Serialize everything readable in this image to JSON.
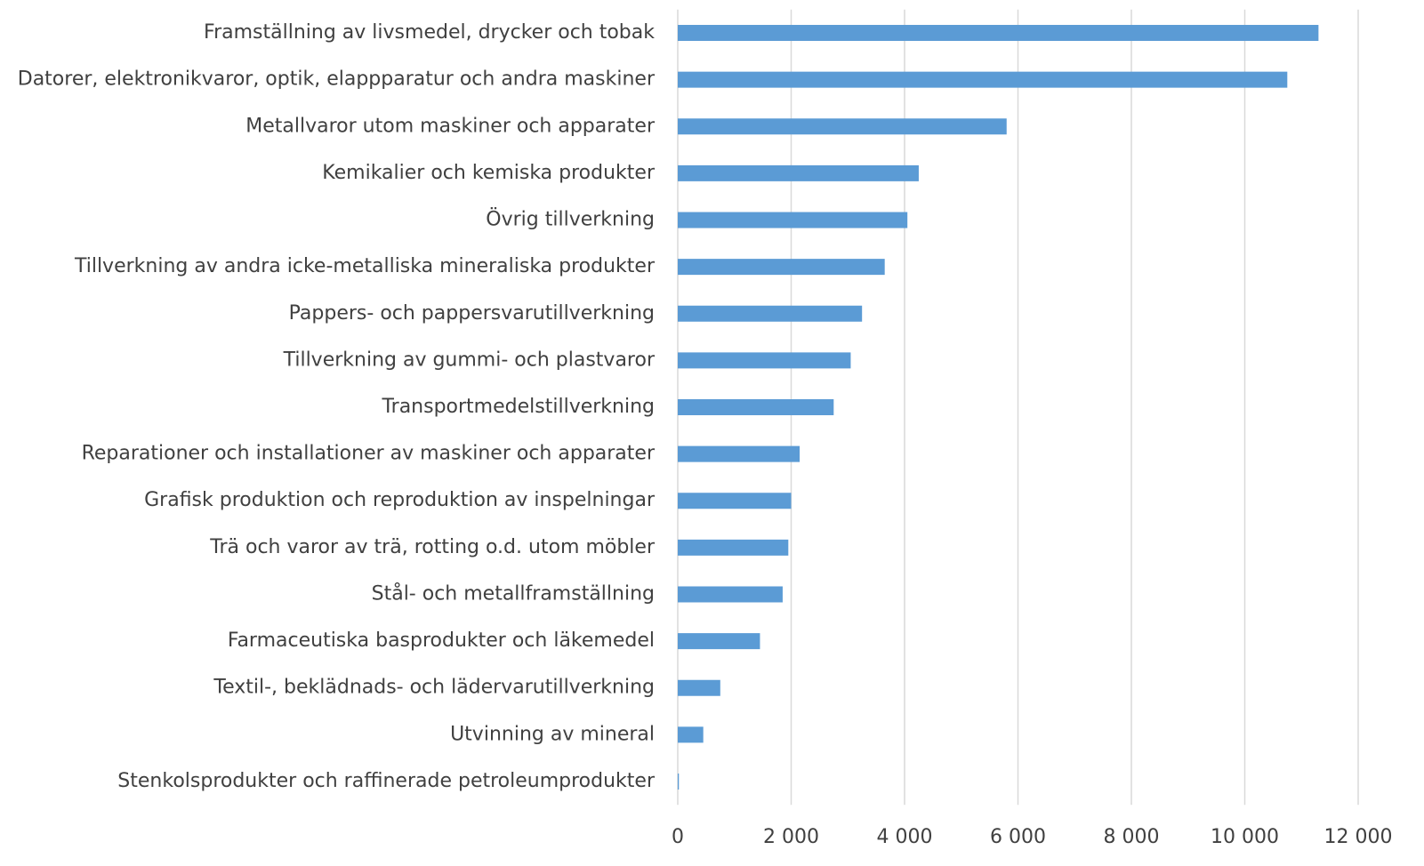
{
  "chart_data": {
    "type": "barh",
    "categories": [
      "Framställning av livsmedel, drycker och tobak",
      "Datorer, elektronikvaror, optik, elappparatur och andra maskiner",
      "Metallvaror utom maskiner och apparater",
      "Kemikalier och kemiska produkter",
      "Övrig tillverkning",
      "Tillverkning av andra icke-metalliska mineraliska produkter",
      "Pappers- och pappersvarutillverkning",
      "Tillverkning av gummi- och plastvaror",
      "Transportmedelstillverkning",
      "Reparationer och installationer av maskiner och apparater",
      "Grafisk produktion och reproduktion av inspelningar",
      "Trä och varor av trä, rotting o.d. utom möbler",
      "Stål- och metallframställning",
      "Farmaceutiska basprodukter och läkemedel",
      "Textil-, beklädnads- och lädervarutillverkning",
      "Utvinning av mineral",
      "Stenkolsprodukter och raffinerade petroleumprodukter"
    ],
    "values": [
      11300,
      10750,
      5800,
      4250,
      4050,
      3650,
      3250,
      3050,
      2750,
      2150,
      2000,
      1950,
      1850,
      1450,
      750,
      450,
      20
    ],
    "color": "#5b9bd5",
    "xlim": [
      0,
      12000
    ],
    "xticks": [
      0,
      {
        "value": 2000,
        "label": "2 000"
      },
      {
        "value": 4000,
        "label": "4 000"
      },
      {
        "value": 6000,
        "label": "6 000"
      },
      {
        "value": 8000,
        "label": "8 000"
      },
      {
        "value": 10000,
        "label": "10 000"
      },
      {
        "value": 12000,
        "label": "12 000"
      }
    ],
    "grid": true
  }
}
